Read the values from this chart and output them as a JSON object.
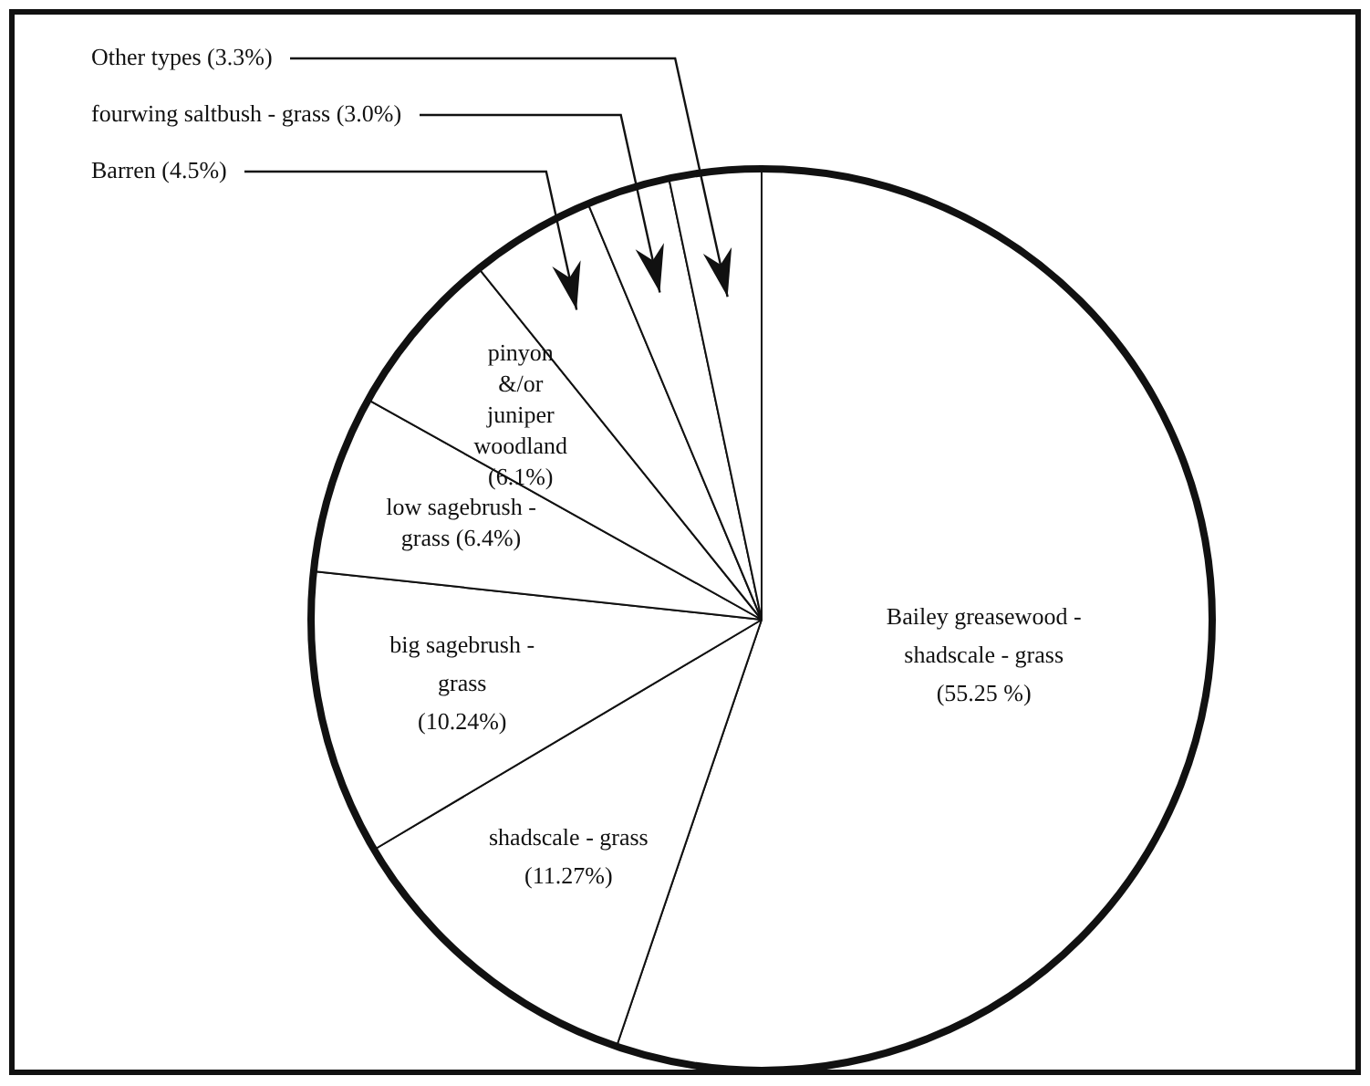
{
  "chart_data": {
    "type": "pie",
    "categories": [
      "Bailey greasewood - shadscale - grass",
      "shadscale - grass",
      "big sagebrush - grass",
      "low sagebrush - grass",
      "pinyon &/or juniper woodland",
      "Barren",
      "fourwing saltbush - grass",
      "Other types"
    ],
    "values": [
      55.25,
      11.27,
      10.24,
      6.4,
      6.1,
      4.5,
      3.0,
      3.3
    ],
    "value_labels": [
      "(55.25 %)",
      "(11.27%)",
      "(10.24%)",
      "(6.4%)",
      "(6.1%)",
      "(4.5%)",
      "(3.0%)",
      "(3.3%)"
    ],
    "colors": [
      "#ffffff",
      "#ffffff",
      "#ffffff",
      "#ffffff",
      "#ffffff",
      "#ffffff",
      "#ffffff",
      "#ffffff"
    ],
    "legend": false
  }
}
